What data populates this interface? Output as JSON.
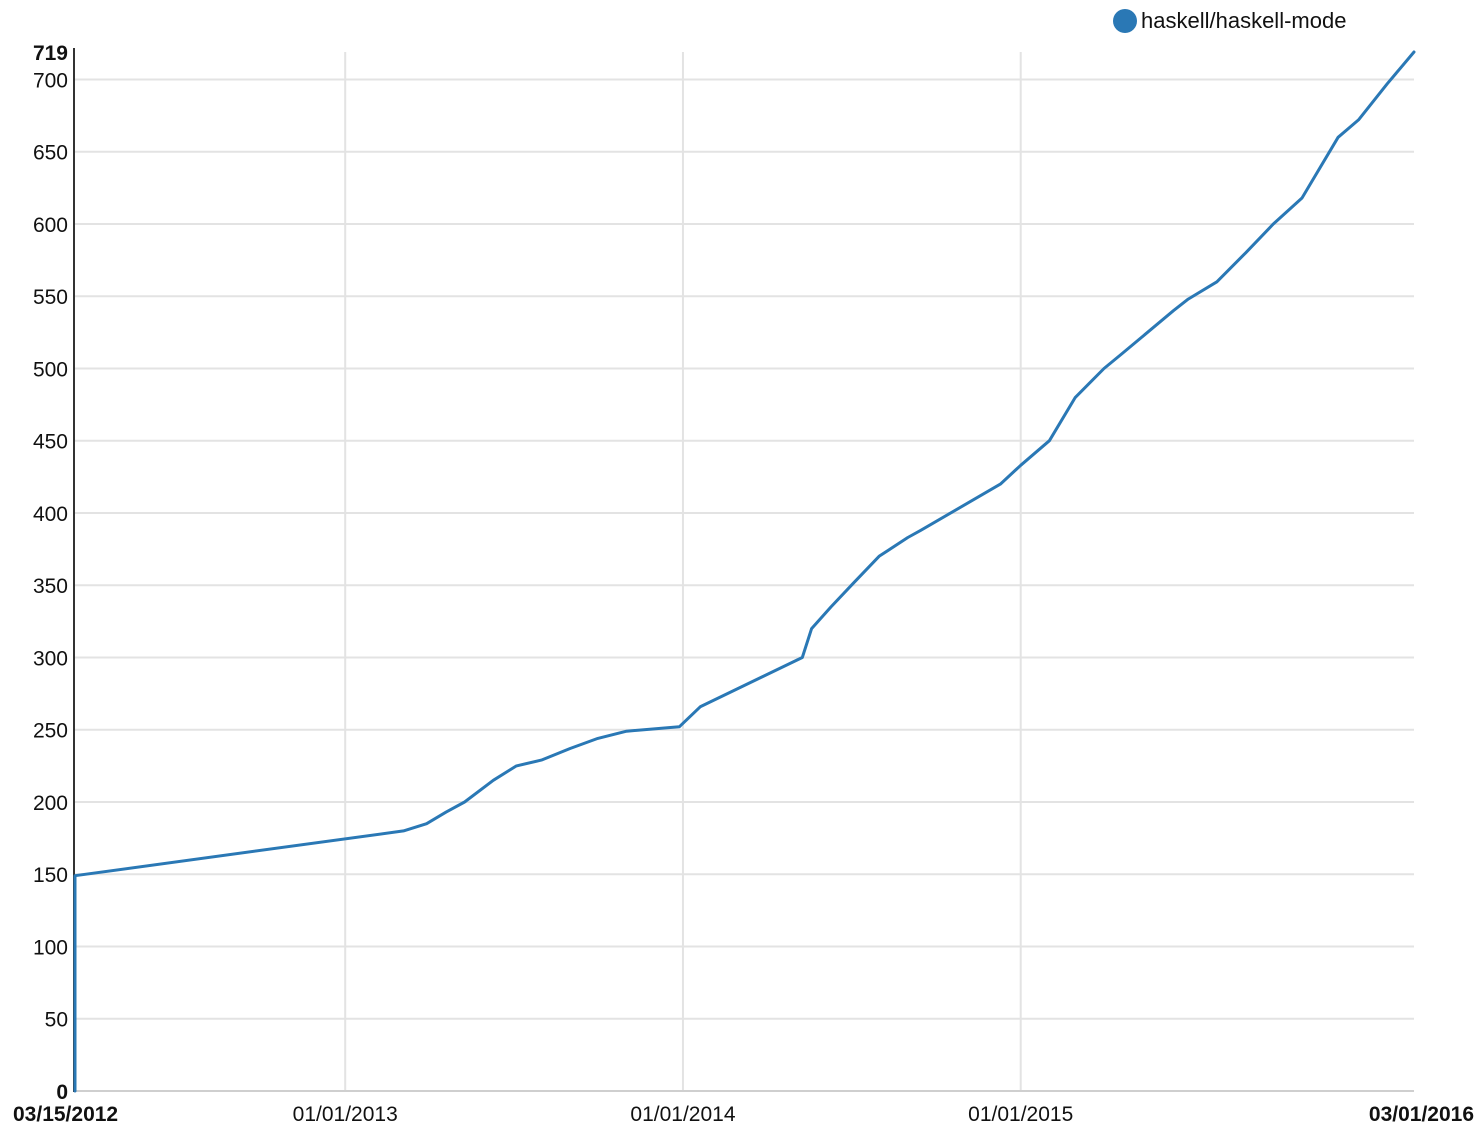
{
  "chart_data": {
    "type": "line",
    "title": "",
    "xlabel": "",
    "ylabel": "",
    "x_range": [
      "2012-03-15",
      "2016-03-01"
    ],
    "y_range": [
      0,
      719
    ],
    "grid": true,
    "legend_position": "top-right",
    "y_ticks": [
      0,
      50,
      100,
      150,
      200,
      250,
      300,
      350,
      400,
      450,
      500,
      550,
      600,
      650,
      700,
      719
    ],
    "y_tick_labels": [
      "0",
      "50",
      "100",
      "150",
      "200",
      "250",
      "300",
      "350",
      "400",
      "450",
      "500",
      "550",
      "600",
      "650",
      "700",
      "719"
    ],
    "x_ticks": [
      "2012-03-15",
      "2013-01-01",
      "2014-01-01",
      "2015-01-01",
      "2016-03-01"
    ],
    "x_tick_labels": [
      "03/15/2012",
      "01/01/2013",
      "01/01/2014",
      "01/01/2015",
      "03/01/2016"
    ],
    "series": [
      {
        "name": "haskell/haskell-mode",
        "color": "#2a78b5",
        "points": [
          [
            "2012-03-15",
            0
          ],
          [
            "2012-03-15",
            149
          ],
          [
            "2013-03-05",
            180
          ],
          [
            "2013-03-30",
            185
          ],
          [
            "2013-04-20",
            193
          ],
          [
            "2013-05-10",
            200
          ],
          [
            "2013-06-10",
            215
          ],
          [
            "2013-07-05",
            225
          ],
          [
            "2013-08-01",
            229
          ],
          [
            "2013-09-01",
            237
          ],
          [
            "2013-10-01",
            244
          ],
          [
            "2013-11-01",
            249
          ],
          [
            "2013-12-28",
            252
          ],
          [
            "2014-01-20",
            266
          ],
          [
            "2014-05-10",
            300
          ],
          [
            "2014-05-20",
            320
          ],
          [
            "2014-06-10",
            335
          ],
          [
            "2014-07-05",
            352
          ],
          [
            "2014-08-01",
            370
          ],
          [
            "2014-09-01",
            383
          ],
          [
            "2014-09-15",
            388
          ],
          [
            "2014-12-10",
            420
          ],
          [
            "2015-01-01",
            433
          ],
          [
            "2015-02-01",
            450
          ],
          [
            "2015-03-01",
            480
          ],
          [
            "2015-04-01",
            500
          ],
          [
            "2015-04-20",
            510
          ],
          [
            "2015-06-15",
            540
          ],
          [
            "2015-07-01",
            548
          ],
          [
            "2015-08-01",
            560
          ],
          [
            "2015-09-01",
            580
          ],
          [
            "2015-10-01",
            600
          ],
          [
            "2015-11-01",
            618
          ],
          [
            "2015-12-10",
            660
          ],
          [
            "2016-01-01",
            672
          ],
          [
            "2016-02-01",
            697
          ],
          [
            "2016-03-01",
            719
          ]
        ]
      }
    ]
  }
}
